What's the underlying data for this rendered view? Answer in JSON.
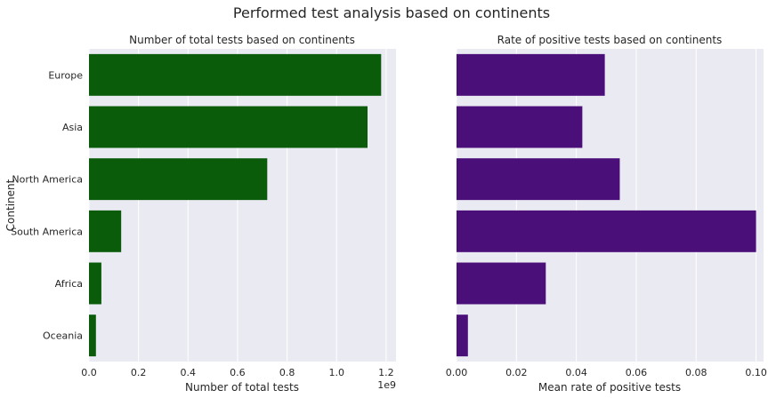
{
  "figure": {
    "suptitle": "Performed test analysis based on continents"
  },
  "chart_data": [
    {
      "type": "bar",
      "orientation": "horizontal",
      "title": "Number of total tests based on continents",
      "xlabel": "Number of total tests",
      "ylabel": "Continent",
      "categories": [
        "Europe",
        "Asia",
        "North America",
        "South America",
        "Africa",
        "Oceania"
      ],
      "values": [
        1180000000,
        1125000000,
        720000000,
        130000000,
        50000000,
        28000000
      ],
      "xlim": [
        0,
        1240000000
      ],
      "xticks": [
        0,
        200000000,
        400000000,
        600000000,
        800000000,
        1000000000,
        1200000000
      ],
      "xtick_labels": [
        "0.0",
        "0.2",
        "0.4",
        "0.6",
        "0.8",
        "1.0",
        "1.2"
      ],
      "x_offset_label": "1e9",
      "bar_color": "#0a5c0a",
      "background": "#eaeaf2",
      "grid": true
    },
    {
      "type": "bar",
      "orientation": "horizontal",
      "title": "Rate of positive tests based on continents",
      "xlabel": "Mean rate of positive tests",
      "ylabel": "",
      "categories": [
        "Europe",
        "Asia",
        "North America",
        "South America",
        "Africa",
        "Oceania"
      ],
      "show_category_labels": false,
      "values": [
        0.0495,
        0.042,
        0.0545,
        0.1,
        0.0298,
        0.0038
      ],
      "xlim": [
        0,
        0.1025
      ],
      "xticks": [
        0,
        0.02,
        0.04,
        0.06,
        0.08,
        0.1
      ],
      "xtick_labels": [
        "0.00",
        "0.02",
        "0.04",
        "0.06",
        "0.08",
        "0.10"
      ],
      "bar_color": "#4b0f7a",
      "background": "#eaeaf2",
      "grid": true
    }
  ]
}
